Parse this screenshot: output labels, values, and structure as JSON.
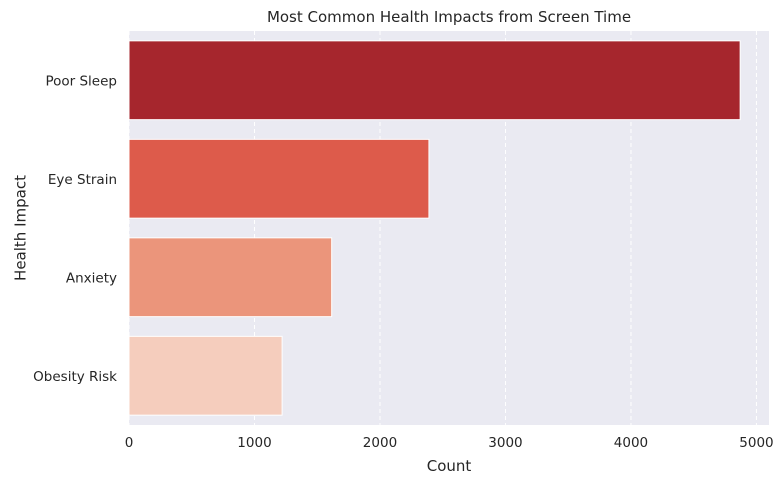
{
  "chart_data": {
    "type": "bar",
    "orientation": "horizontal",
    "title": "Most Common Health Impacts from Screen Time",
    "xlabel": "Count",
    "ylabel": "Health Impact",
    "categories": [
      "Poor Sleep",
      "Eye Strain",
      "Anxiety",
      "Obesity Risk"
    ],
    "values": [
      4870,
      2390,
      1615,
      1220
    ],
    "xlim": [
      0,
      5100
    ],
    "xticks": [
      0,
      1000,
      2000,
      3000,
      4000,
      5000
    ],
    "xtick_labels": [
      "0",
      "1000",
      "2000",
      "3000",
      "4000",
      "5000"
    ],
    "bar_colors": [
      "#a6262d",
      "#dd5b4b",
      "#eb957b",
      "#f5cdbd"
    ],
    "plot_background": "#eaeaf2",
    "grid": {
      "x": true,
      "y": false,
      "style": "dashed",
      "color": "#ffffff"
    },
    "legend": "none"
  }
}
